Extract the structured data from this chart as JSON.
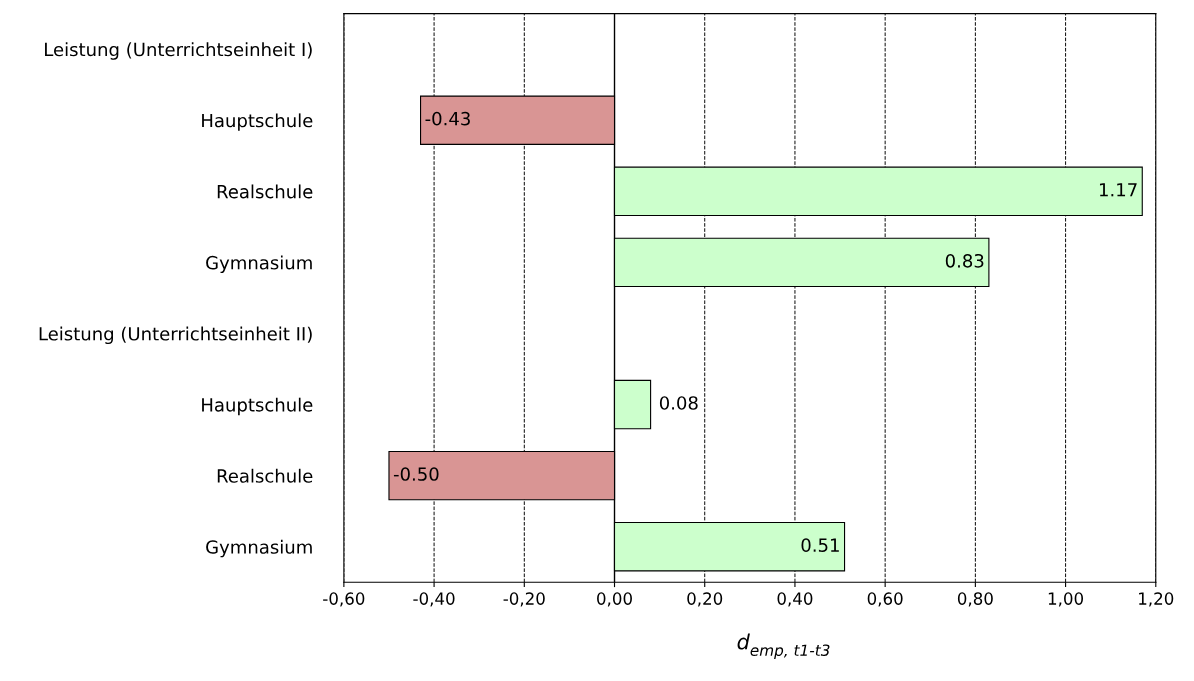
{
  "chart_data": {
    "type": "bar",
    "orientation": "horizontal",
    "categories": [
      "Leistung (Unterrichtseinheit I)",
      "Hauptschule",
      "Realschule",
      "Gymnasium",
      "Leistung (Unterrichtseinheit II)",
      "Hauptschule",
      "Realschule",
      "Gymnasium"
    ],
    "values": [
      null,
      -0.43,
      1.17,
      0.83,
      null,
      0.08,
      -0.5,
      0.51
    ],
    "colors": [
      null,
      "#d99594",
      "#ccffcc",
      "#ccffcc",
      null,
      "#ccffcc",
      "#d99594",
      "#ccffcc"
    ],
    "value_labels": [
      null,
      "-0.43",
      "1.17",
      "0.83",
      null,
      "0.08",
      "-0.50",
      "0.51"
    ],
    "xlabel": "d$_{emp, t1-t3}$",
    "xlim": [
      -0.6,
      1.2
    ],
    "xticks": [
      {
        "value": -0.6,
        "label": "-0,60"
      },
      {
        "value": -0.4,
        "label": "-0,40"
      },
      {
        "value": -0.2,
        "label": "-0,20"
      },
      {
        "value": 0,
        "label": "0,00"
      },
      {
        "value": 0.2,
        "label": "0,20"
      },
      {
        "value": 0.4,
        "label": "0,40"
      },
      {
        "value": 0.6,
        "label": "0,60"
      },
      {
        "value": 0.8,
        "label": "0,80"
      },
      {
        "value": 1.0,
        "label": "1,00"
      },
      {
        "value": 1.2,
        "label": "1,20"
      }
    ],
    "ref_lines": [
      {
        "axis": "x",
        "value": 0,
        "color": "#000000",
        "line_style": "solid"
      }
    ],
    "grid": "x",
    "line_style": "dashed"
  }
}
